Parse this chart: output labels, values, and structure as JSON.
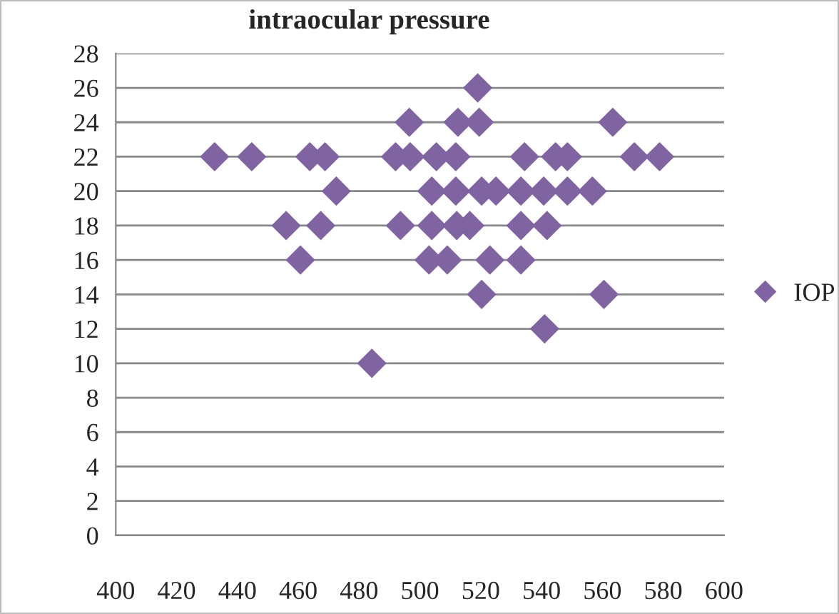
{
  "chart_data": {
    "type": "scatter",
    "title": "intraocular pressure",
    "x": [
      432.5,
      444.7,
      463.8,
      468.8,
      492,
      472.5,
      456,
      467.4,
      493.6,
      460.7,
      484.2,
      496.5,
      512.5,
      519.5,
      563.4,
      519,
      496.8,
      505.4,
      511.8,
      534.4,
      544.6,
      548.5,
      570.5,
      578.8,
      503.9,
      511.8,
      520.3,
      525,
      533.2,
      540.7,
      548.5,
      556.7,
      503.9,
      512.1,
      516.4,
      533.2,
      541.8,
      503,
      509,
      523,
      533.2,
      520.3,
      560.5,
      541
    ],
    "series": [
      {
        "name": "IOP",
        "color": "#8064a2",
        "values": [
          22,
          22,
          22,
          22,
          22,
          20,
          18,
          18,
          18,
          16,
          10,
          24,
          24,
          24,
          24,
          26,
          22,
          22,
          22,
          22,
          22,
          22,
          22,
          22,
          20,
          20,
          20,
          20,
          20,
          20,
          20,
          20,
          18,
          18,
          18,
          18,
          18,
          16,
          16,
          16,
          16,
          14,
          14,
          12
        ]
      }
    ],
    "xlim": [
      400,
      600
    ],
    "xticks": [
      400,
      420,
      440,
      460,
      480,
      500,
      520,
      540,
      560,
      580,
      600
    ],
    "ylim": [
      0,
      28
    ],
    "yticks": [
      0,
      2,
      4,
      6,
      8,
      10,
      12,
      14,
      16,
      18,
      20,
      22,
      24,
      26,
      28
    ],
    "grid": "y",
    "legend": "right",
    "marker": "diamond"
  }
}
